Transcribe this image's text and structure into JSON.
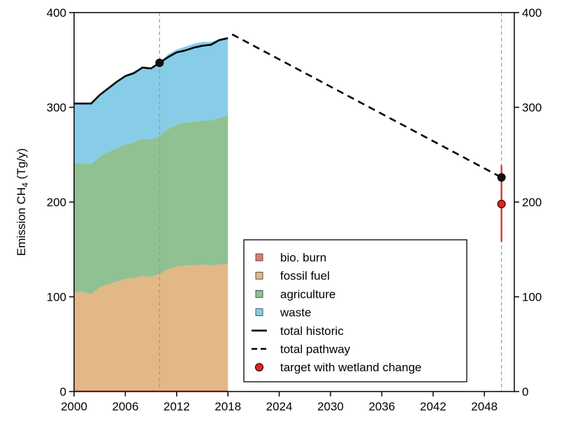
{
  "chart_data": {
    "type": "area",
    "ylabel_main": "Emission CH",
    "ylabel_sub": "4",
    "ylabel_unit": " (Tg/y)",
    "xlim": [
      2000,
      2051.5
    ],
    "ylim": [
      0,
      400
    ],
    "x_ticks": [
      "2000",
      "2006",
      "2012",
      "2018",
      "2024",
      "2030",
      "2036",
      "2042",
      "2048"
    ],
    "x_tick_values": [
      2000,
      2006,
      2012,
      2018,
      2024,
      2030,
      2036,
      2042,
      2048
    ],
    "y_ticks_left": [
      "0",
      "100",
      "200",
      "300",
      "400"
    ],
    "y_ticks_right": [
      "0",
      "100",
      "200",
      "300",
      "400"
    ],
    "y_tick_values": [
      0,
      100,
      200,
      300,
      400
    ],
    "vertical_reference_lines": [
      2010,
      2050
    ],
    "years": [
      2000,
      2001,
      2002,
      2003,
      2004,
      2005,
      2006,
      2007,
      2008,
      2009,
      2010,
      2011,
      2012,
      2013,
      2014,
      2015,
      2016,
      2017,
      2018
    ],
    "series": [
      {
        "name": "bio. burn",
        "color": "#e07b6e",
        "values": [
          1.5,
          1.5,
          1.5,
          1.5,
          1.5,
          1.5,
          1.5,
          1.5,
          1.5,
          1.5,
          1.5,
          1.5,
          1.5,
          1.5,
          1.5,
          1.5,
          1.5,
          1.5,
          1.5
        ]
      },
      {
        "name": "fossil fuel",
        "color": "#e2b887",
        "values": [
          103.5,
          103.5,
          101.5,
          108.5,
          111.5,
          114.5,
          117.5,
          118.5,
          120.5,
          119.5,
          122.5,
          127.5,
          130.5,
          131.5,
          131.5,
          132.5,
          131.5,
          132.5,
          133.5
        ]
      },
      {
        "name": "agriculture",
        "color": "#8fc193",
        "values": [
          136,
          136,
          137,
          138,
          140,
          141,
          142,
          143,
          145,
          145,
          146,
          148,
          150,
          151,
          152,
          152,
          153,
          155,
          157
        ]
      },
      {
        "name": "waste",
        "color": "#87cde8",
        "values": [
          63,
          63,
          64,
          64,
          67,
          70,
          73,
          75,
          75,
          75,
          77,
          79,
          79,
          80,
          82,
          83,
          83,
          83,
          81
        ]
      }
    ],
    "total_historic": [
      304,
      304,
      304,
      313,
      320,
      327,
      333,
      336,
      342,
      341,
      347,
      353,
      358,
      360,
      363,
      365,
      366,
      371,
      373
    ],
    "total_pathway": {
      "x": [
        2018.5,
        2050
      ],
      "y": [
        377,
        226
      ]
    },
    "points": [
      {
        "x": 2010,
        "y": 347,
        "color": "#111111"
      },
      {
        "x": 2050,
        "y": 226,
        "color": "#111111"
      }
    ],
    "target": {
      "x": 2050,
      "y": 198,
      "low": 158,
      "high": 239,
      "color": "#e3231b"
    },
    "legend": {
      "placement": "bottom-right",
      "entries": [
        {
          "label": "bio. burn",
          "kind": "square",
          "color": "#e07b6e"
        },
        {
          "label": "fossil fuel",
          "kind": "square",
          "color": "#e2b887"
        },
        {
          "label": "agriculture",
          "kind": "square",
          "color": "#8fc193"
        },
        {
          "label": "waste",
          "kind": "square",
          "color": "#87cde8"
        },
        {
          "label": "total historic",
          "kind": "solid-line",
          "color": "#000000"
        },
        {
          "label": "total pathway",
          "kind": "dashed-line",
          "color": "#000000"
        },
        {
          "label": "target with wetland change",
          "kind": "circle",
          "color": "#e3231b"
        }
      ]
    }
  }
}
